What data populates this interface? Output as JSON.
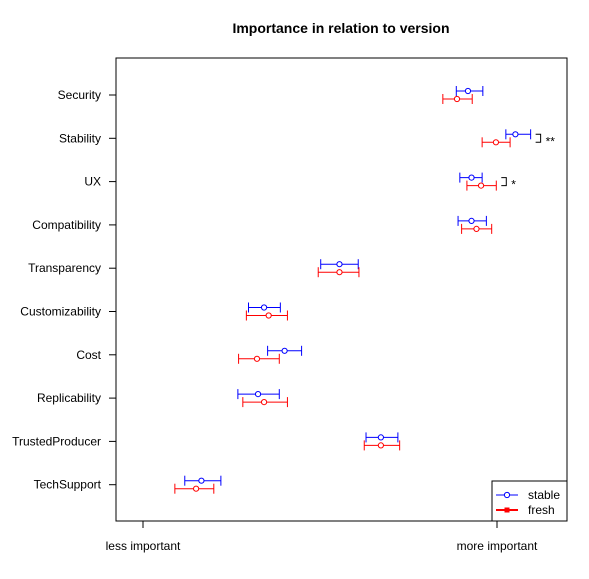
{
  "chart_data": {
    "type": "scatter",
    "title": "Importance in relation to version",
    "xlabel": "",
    "ylabel": "",
    "x_ticks": [
      "less important",
      "more important"
    ],
    "xlim": [
      0,
      1
    ],
    "categories": [
      "Security",
      "Stability",
      "UX",
      "Compatibility",
      "Transparency",
      "Customizability",
      "Cost",
      "Replicability",
      "TrustedProducer",
      "TechSupport"
    ],
    "series": [
      {
        "name": "stable",
        "color": "#0000ff",
        "marker": "circle",
        "mean": [
          0.918,
          1.052,
          0.928,
          0.928,
          0.555,
          0.342,
          0.4,
          0.325,
          0.672,
          0.165
        ],
        "lower": [
          0.885,
          1.025,
          0.895,
          0.89,
          0.502,
          0.298,
          0.352,
          0.268,
          0.63,
          0.118
        ],
        "upper": [
          0.96,
          1.095,
          0.958,
          0.97,
          0.608,
          0.388,
          0.448,
          0.385,
          0.72,
          0.22
        ]
      },
      {
        "name": "fresh",
        "color": "#ff0000",
        "marker": "circle",
        "mean": [
          0.887,
          0.997,
          0.955,
          0.942,
          0.555,
          0.355,
          0.322,
          0.342,
          0.672,
          0.15
        ],
        "lower": [
          0.847,
          0.958,
          0.915,
          0.9,
          0.495,
          0.292,
          0.27,
          0.282,
          0.625,
          0.09
        ],
        "upper": [
          0.93,
          1.037,
          0.998,
          0.985,
          0.61,
          0.408,
          0.385,
          0.408,
          0.725,
          0.2
        ]
      }
    ],
    "annotations": [
      {
        "category": "Stability",
        "text": "**"
      },
      {
        "category": "UX",
        "text": "*"
      }
    ],
    "legend": {
      "position": "bottom-right",
      "entries": [
        "stable",
        "fresh"
      ]
    },
    "grid": false
  }
}
